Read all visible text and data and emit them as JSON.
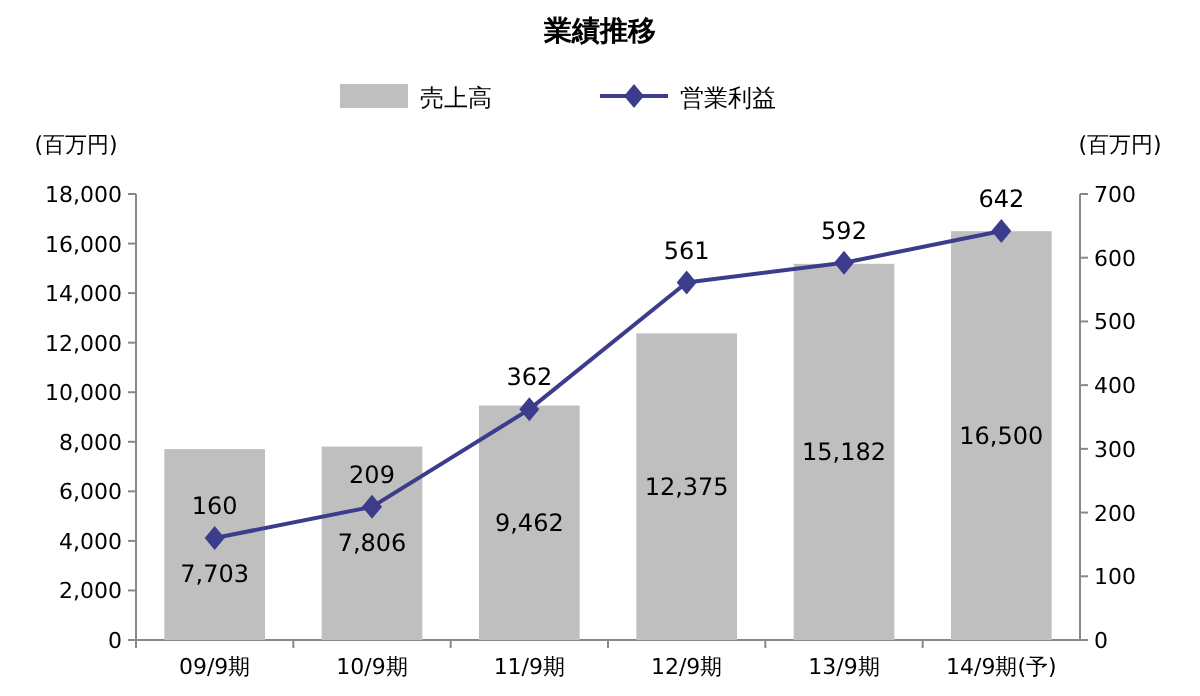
{
  "chart_data": {
    "type": "bar",
    "title": "業績推移",
    "ylabel": "(百万円)",
    "y2label": "(百万円)",
    "categories": [
      "09/9期",
      "10/9期",
      "11/9期",
      "12/9期",
      "13/9期",
      "14/9期(予)"
    ],
    "series": [
      {
        "name": "売上高",
        "color": "#bfbfbf",
        "values": [
          7703,
          7806,
          9462,
          12375,
          15182,
          16500
        ],
        "value_labels": [
          "7,703",
          "7,806",
          "9,462",
          "12,375",
          "15,182",
          "16,500"
        ]
      },
      {
        "name": "営業利益",
        "type": "line",
        "axis": "y2",
        "color": "#3c3c8c",
        "values": [
          160,
          209,
          362,
          561,
          592,
          642
        ],
        "value_labels": [
          "160",
          "209",
          "362",
          "561",
          "592",
          "642"
        ]
      }
    ],
    "ylim": [
      0,
      18000
    ],
    "yticks": [
      {
        "value": 0,
        "label": "0"
      },
      {
        "value": 2000,
        "label": "2,000"
      },
      {
        "value": 4000,
        "label": "4,000"
      },
      {
        "value": 6000,
        "label": "6,000"
      },
      {
        "value": 8000,
        "label": "8,000"
      },
      {
        "value": 10000,
        "label": "10,000"
      },
      {
        "value": 12000,
        "label": "12,000"
      },
      {
        "value": 14000,
        "label": "14,000"
      },
      {
        "value": 16000,
        "label": "16,000"
      },
      {
        "value": 18000,
        "label": "18,000"
      }
    ],
    "y2lim": [
      0,
      700
    ],
    "y2ticks": [
      0,
      100,
      200,
      300,
      400,
      500,
      600,
      700
    ],
    "legend": "top",
    "grid": false,
    "marker": "diamond",
    "line_style": "solid"
  }
}
